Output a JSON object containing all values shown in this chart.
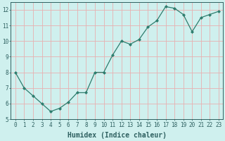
{
  "x": [
    0,
    1,
    2,
    3,
    4,
    5,
    6,
    7,
    8,
    9,
    10,
    11,
    12,
    13,
    14,
    15,
    16,
    17,
    18,
    19,
    20,
    21,
    22,
    23
  ],
  "y": [
    8.0,
    7.0,
    6.5,
    6.0,
    5.5,
    5.7,
    6.1,
    6.7,
    6.7,
    8.0,
    8.0,
    9.1,
    10.0,
    9.8,
    10.1,
    10.9,
    11.3,
    12.2,
    12.1,
    11.7,
    10.6,
    11.5,
    11.7,
    11.9
  ],
  "xlabel": "Humidex (Indice chaleur)",
  "xlim": [
    -0.5,
    23.5
  ],
  "ylim": [
    5,
    12.5
  ],
  "yticks": [
    5,
    6,
    7,
    8,
    9,
    10,
    11,
    12
  ],
  "xticks": [
    0,
    1,
    2,
    3,
    4,
    5,
    6,
    7,
    8,
    9,
    10,
    11,
    12,
    13,
    14,
    15,
    16,
    17,
    18,
    19,
    20,
    21,
    22,
    23
  ],
  "line_color": "#2e7d6e",
  "marker": "D",
  "marker_size": 2.0,
  "bg_color": "#cff0ee",
  "grid_color": "#e8b0b0",
  "font_color": "#2e6060",
  "xlabel_fontsize": 7,
  "tick_fontsize": 5.5
}
